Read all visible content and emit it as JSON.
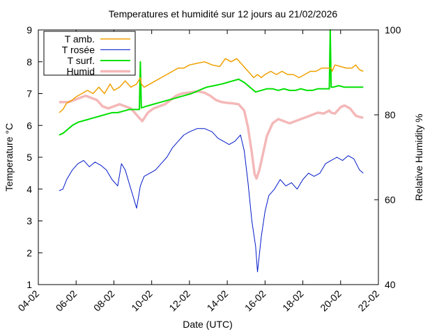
{
  "chart_data": {
    "type": "line",
    "title": "Temperatures et humidité sur 12 jours au 21/02/2026",
    "xlabel": "Date (UTC)",
    "ylabel": "Temperature °C",
    "y2label": "Relative Humidity %",
    "x_ticks": [
      "04-02",
      "06-02",
      "08-02",
      "10-02",
      "12-02",
      "14-02",
      "16-02",
      "18-02",
      "20-02",
      "22-02"
    ],
    "xlim": [
      4,
      22
    ],
    "ylim": [
      1,
      9
    ],
    "y2lim": [
      40,
      100
    ],
    "y_ticks": [
      "1",
      "2",
      "3",
      "4",
      "5",
      "6",
      "7",
      "8",
      "9"
    ],
    "y2_ticks": [
      "40",
      "60",
      "80",
      "100"
    ],
    "grid": false,
    "legend_position": "top-left",
    "series": [
      {
        "name": "T amb.",
        "axis": "y",
        "color": "#f0a000",
        "x": [
          5.1,
          5.3,
          5.5,
          5.8,
          6.0,
          6.3,
          6.6,
          6.9,
          7.2,
          7.5,
          7.8,
          8.0,
          8.3,
          8.6,
          8.9,
          9.2,
          9.4,
          9.45,
          9.6,
          9.9,
          10.2,
          10.5,
          10.8,
          11.1,
          11.4,
          11.7,
          12.0,
          12.4,
          12.8,
          13.2,
          13.6,
          13.9,
          14.2,
          14.5,
          14.8,
          15.1,
          15.4,
          15.6,
          15.8,
          16.0,
          16.3,
          16.6,
          16.9,
          17.2,
          17.5,
          17.8,
          18.1,
          18.4,
          18.7,
          19.0,
          19.3,
          19.5,
          19.55,
          19.7,
          20.0,
          20.3,
          20.6,
          20.8,
          21.0,
          21.2
        ],
        "values": [
          6.4,
          6.5,
          6.7,
          6.8,
          6.9,
          7.0,
          7.1,
          7.0,
          7.2,
          7.0,
          7.3,
          7.1,
          7.2,
          7.4,
          7.2,
          7.3,
          7.5,
          7.3,
          7.2,
          7.3,
          7.4,
          7.5,
          7.6,
          7.7,
          7.8,
          7.8,
          7.9,
          7.95,
          8.0,
          7.9,
          7.85,
          8.1,
          8.0,
          8.1,
          7.9,
          7.7,
          7.5,
          7.6,
          7.5,
          7.6,
          7.7,
          7.6,
          7.7,
          7.6,
          7.6,
          7.5,
          7.6,
          7.7,
          7.7,
          7.8,
          7.8,
          7.8,
          7.7,
          7.9,
          7.85,
          7.8,
          7.8,
          7.9,
          7.75,
          7.7
        ]
      },
      {
        "name": "T rosée",
        "axis": "y",
        "color": "#0018c8",
        "x": [
          5.1,
          5.3,
          5.5,
          5.8,
          6.1,
          6.4,
          6.7,
          7.0,
          7.3,
          7.6,
          7.9,
          8.2,
          8.4,
          8.6,
          8.8,
          9.0,
          9.2,
          9.4,
          9.6,
          9.9,
          10.2,
          10.5,
          10.8,
          11.1,
          11.4,
          11.7,
          12.0,
          12.4,
          12.8,
          13.2,
          13.5,
          13.8,
          14.1,
          14.4,
          14.7,
          14.9,
          15.1,
          15.3,
          15.5,
          15.6,
          15.8,
          16.0,
          16.2,
          16.5,
          16.8,
          17.1,
          17.4,
          17.7,
          18.0,
          18.3,
          18.6,
          18.9,
          19.2,
          19.5,
          19.8,
          20.1,
          20.4,
          20.7,
          21.0,
          21.2
        ],
        "values": [
          3.95,
          4.0,
          4.3,
          4.6,
          4.8,
          4.9,
          4.7,
          4.85,
          4.75,
          4.6,
          4.3,
          4.1,
          4.8,
          4.6,
          4.2,
          3.8,
          3.4,
          4.1,
          4.4,
          4.5,
          4.6,
          4.8,
          5.0,
          5.3,
          5.5,
          5.7,
          5.8,
          5.9,
          5.9,
          5.8,
          5.6,
          5.5,
          5.4,
          5.5,
          5.7,
          5.2,
          4.2,
          3.0,
          2.2,
          1.4,
          2.5,
          3.3,
          3.8,
          4.0,
          4.3,
          4.1,
          4.2,
          4.0,
          4.3,
          4.5,
          4.4,
          4.5,
          4.8,
          4.9,
          5.0,
          4.9,
          5.05,
          4.95,
          4.6,
          4.5
        ]
      },
      {
        "name": "T surf.",
        "axis": "y",
        "color": "#00e000",
        "x": [
          5.1,
          5.3,
          5.5,
          5.8,
          6.1,
          6.4,
          6.7,
          7.0,
          7.3,
          7.6,
          7.9,
          8.2,
          8.5,
          8.8,
          9.1,
          9.35,
          9.4,
          9.45,
          9.7,
          10.0,
          10.3,
          10.6,
          10.9,
          11.2,
          11.5,
          11.8,
          12.1,
          12.5,
          12.9,
          13.3,
          13.7,
          14.0,
          14.3,
          14.6,
          14.9,
          15.2,
          15.5,
          15.8,
          16.1,
          16.4,
          16.7,
          17.0,
          17.3,
          17.6,
          17.9,
          18.2,
          18.5,
          18.8,
          19.1,
          19.4,
          19.45,
          19.5,
          19.6,
          19.9,
          20.2,
          20.5,
          20.8,
          21.0,
          21.2
        ],
        "values": [
          5.7,
          5.75,
          5.85,
          6.0,
          6.1,
          6.15,
          6.2,
          6.25,
          6.3,
          6.35,
          6.4,
          6.4,
          6.45,
          6.5,
          6.5,
          6.5,
          8.0,
          6.55,
          6.6,
          6.65,
          6.7,
          6.75,
          6.8,
          6.85,
          6.9,
          6.95,
          7.0,
          7.1,
          7.2,
          7.25,
          7.3,
          7.35,
          7.4,
          7.45,
          7.35,
          7.2,
          7.05,
          7.1,
          7.15,
          7.15,
          7.1,
          7.15,
          7.1,
          7.1,
          7.15,
          7.1,
          7.1,
          7.15,
          7.15,
          7.15,
          9.0,
          7.2,
          7.2,
          7.25,
          7.2,
          7.2,
          7.2,
          7.2,
          7.2
        ]
      },
      {
        "name": "Humid",
        "axis": "y2",
        "color": "#f4b8b8",
        "x": [
          5.1,
          5.3,
          5.6,
          5.9,
          6.2,
          6.5,
          6.8,
          7.1,
          7.4,
          7.7,
          8.0,
          8.3,
          8.6,
          8.9,
          9.1,
          9.3,
          9.5,
          9.8,
          10.1,
          10.4,
          10.7,
          11.0,
          11.3,
          11.6,
          11.9,
          12.2,
          12.5,
          12.8,
          13.1,
          13.4,
          13.7,
          14.0,
          14.3,
          14.6,
          14.9,
          15.1,
          15.3,
          15.45,
          15.55,
          15.7,
          15.9,
          16.1,
          16.4,
          16.7,
          17.0,
          17.3,
          17.6,
          17.9,
          18.2,
          18.5,
          18.8,
          19.1,
          19.4,
          19.5,
          19.7,
          20.0,
          20.2,
          20.5,
          20.8,
          21.0,
          21.2
        ],
        "values": [
          83,
          83,
          83,
          83.5,
          84,
          84.5,
          84,
          83.5,
          82,
          81.5,
          82,
          82.5,
          82,
          81.5,
          80.5,
          79.5,
          78.5,
          80.5,
          81.5,
          82,
          82.5,
          83.5,
          84.5,
          85,
          85.2,
          85.4,
          85.5,
          85.2,
          84.5,
          83.5,
          83,
          82.8,
          82.7,
          82.5,
          81,
          77,
          71,
          66,
          65,
          67,
          71,
          75,
          78,
          79,
          78.5,
          78,
          78.5,
          79,
          79.5,
          80,
          80.5,
          80.3,
          81,
          80.5,
          80.3,
          81.8,
          82.2,
          81.5,
          79.8,
          79.5,
          79.3
        ]
      }
    ]
  }
}
